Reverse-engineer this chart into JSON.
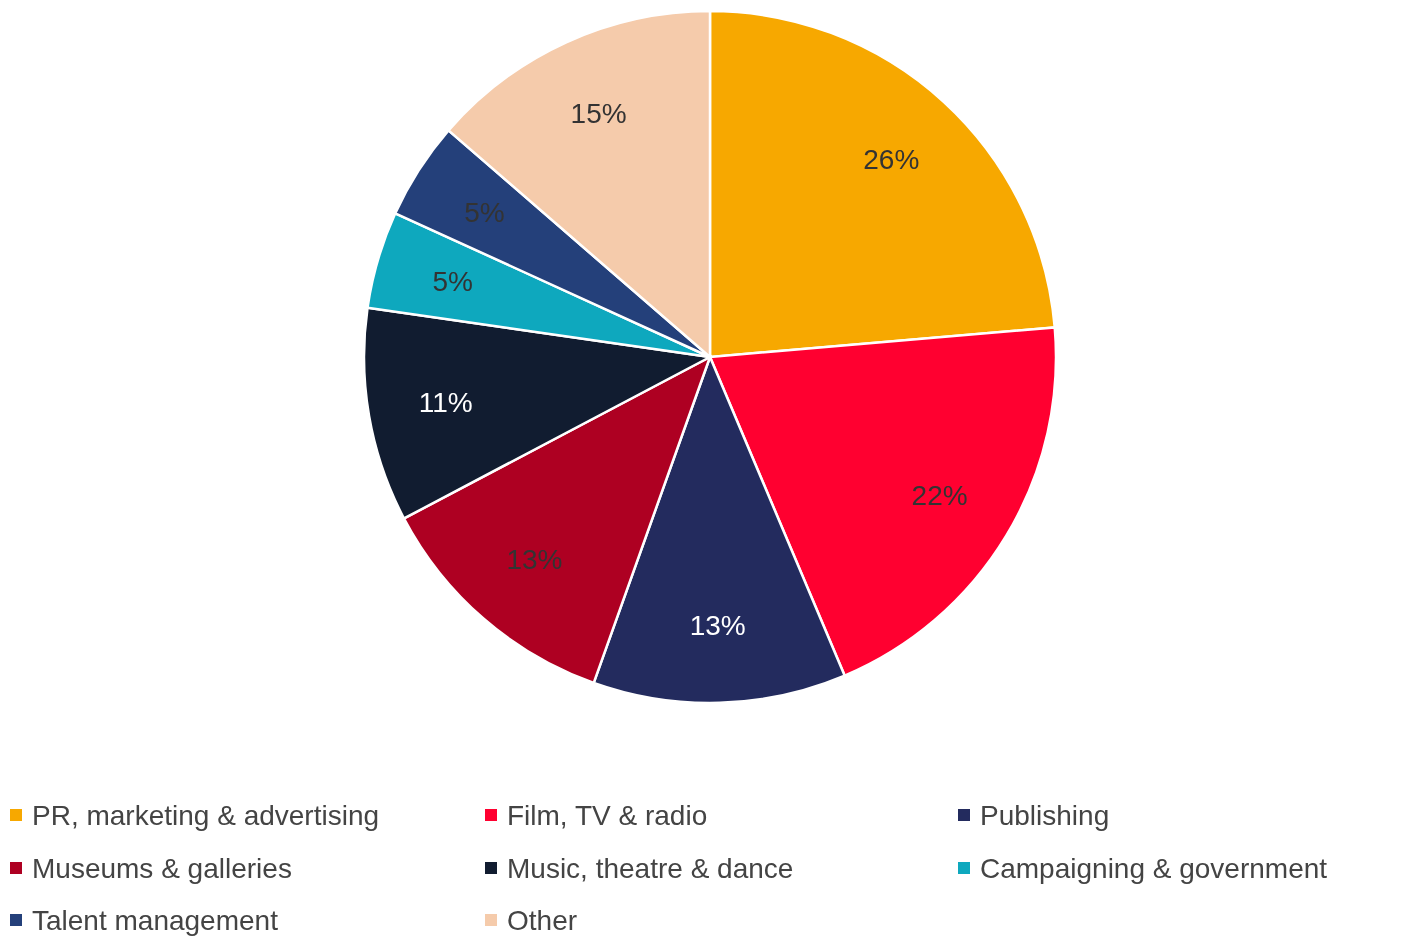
{
  "chart_data": {
    "type": "pie",
    "categories": [
      "PR, marketing & advertising",
      "Film, TV & radio",
      "Publishing",
      "Museums & galleries",
      "Music, theatre & dance",
      "Campaigning & government",
      "Talent management",
      "Other"
    ],
    "values": [
      26,
      22,
      13,
      13,
      11,
      5,
      5,
      15
    ],
    "colors": [
      "#f7a800",
      "#ff0030",
      "#232b5e",
      "#ae0022",
      "#111c30",
      "#0ea8be",
      "#24407a",
      "#f5cbab"
    ],
    "value_labels": [
      "26%",
      "22%",
      "13%",
      "13%",
      "11%",
      "5%",
      "5%",
      "15%"
    ],
    "legend": "bottom"
  }
}
